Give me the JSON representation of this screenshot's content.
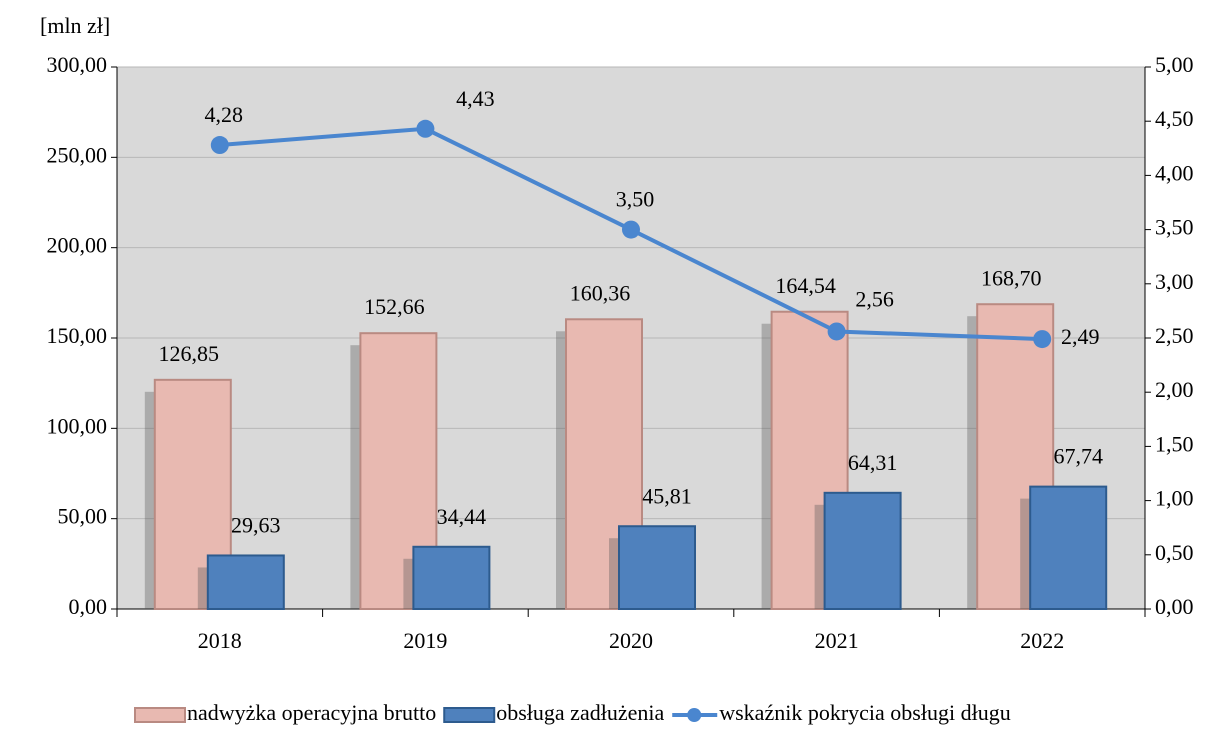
{
  "chart_data": {
    "type": "bar",
    "y_axis_label": "[mln zł]",
    "categories": [
      "2018",
      "2019",
      "2020",
      "2021",
      "2022"
    ],
    "series": [
      {
        "name": "nadwyżka operacyjna brutto",
        "color": "#e8b9b1",
        "values": [
          126.85,
          152.66,
          160.36,
          164.54,
          168.7
        ],
        "value_labels": [
          "126,85",
          "152,66",
          "160,36",
          "164,54",
          "168,70"
        ]
      },
      {
        "name": "obsługa zadłużenia",
        "color": "#4f81bd",
        "values": [
          29.63,
          34.44,
          45.81,
          64.31,
          67.74
        ],
        "value_labels": [
          "29,63",
          "34,44",
          "45,81",
          "64,31",
          "67,74"
        ]
      },
      {
        "name": "wskaźnik pokrycia obsługi długu",
        "type": "line",
        "axis": "y2",
        "color": "#4a86cf",
        "values": [
          4.28,
          4.43,
          3.5,
          2.56,
          2.49
        ],
        "value_labels": [
          "4,28",
          "4,43",
          "3,50",
          "2,56",
          "2,49"
        ]
      }
    ],
    "ylim": [
      0,
      300
    ],
    "yticks": [
      {
        "value": 0,
        "label": "0,00"
      },
      {
        "value": 50,
        "label": "50,00"
      },
      {
        "value": 100,
        "label": "100,00"
      },
      {
        "value": 150,
        "label": "150,00"
      },
      {
        "value": 200,
        "label": "200,00"
      },
      {
        "value": 250,
        "label": "250,00"
      },
      {
        "value": 300,
        "label": "300,00"
      }
    ],
    "y2lim": [
      0,
      5
    ],
    "y2ticks": [
      {
        "value": 0,
        "label": "0,00"
      },
      {
        "value": 0.5,
        "label": "0,50"
      },
      {
        "value": 1,
        "label": "1,00"
      },
      {
        "value": 1.5,
        "label": "1,50"
      },
      {
        "value": 2,
        "label": "2,00"
      },
      {
        "value": 2.5,
        "label": "2,50"
      },
      {
        "value": 3,
        "label": "3,00"
      },
      {
        "value": 3.5,
        "label": "3,50"
      },
      {
        "value": 4,
        "label": "4,00"
      },
      {
        "value": 4.5,
        "label": "4,50"
      },
      {
        "value": 5,
        "label": "5,00"
      }
    ],
    "grid": true,
    "legend": "bottom"
  }
}
